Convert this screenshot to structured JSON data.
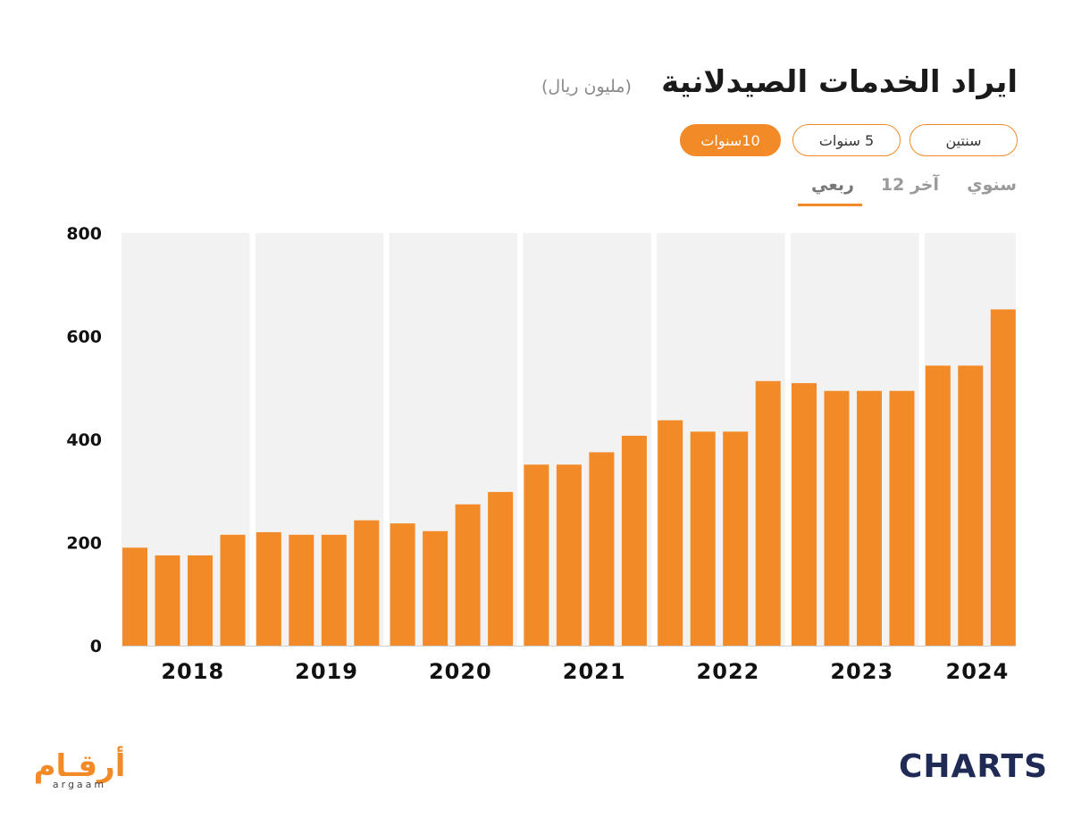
{
  "header": {
    "title": "ايراد الخدمات الصيدلانية",
    "unit": "(مليون ريال)"
  },
  "range_buttons": [
    {
      "label": "سنتين",
      "active": false
    },
    {
      "label": "5 سنوات",
      "active": false
    },
    {
      "label": "10سنوات",
      "active": true
    }
  ],
  "period_tabs": [
    {
      "label": "سنوي",
      "active": false
    },
    {
      "label": "آخر 12",
      "active": false
    },
    {
      "label": "ربعي",
      "active": true
    }
  ],
  "colors": {
    "bar": "#f28a27",
    "band": "#f2f2f2",
    "accent": "#f28a27"
  },
  "chart_data": {
    "type": "bar",
    "ylim": [
      0,
      800
    ],
    "yticks": [
      0,
      200,
      400,
      600,
      800
    ],
    "groups": [
      {
        "year": "2018",
        "values": [
          190,
          175,
          175,
          215
        ]
      },
      {
        "year": "2019",
        "values": [
          220,
          215,
          215,
          243
        ]
      },
      {
        "year": "2020",
        "values": [
          237,
          222,
          274,
          298
        ]
      },
      {
        "year": "2021",
        "values": [
          351,
          351,
          375,
          407
        ]
      },
      {
        "year": "2022",
        "values": [
          437,
          415,
          415,
          513
        ]
      },
      {
        "year": "2023",
        "values": [
          509,
          494,
          494,
          494
        ]
      },
      {
        "year": "2024",
        "values": [
          543,
          543,
          652
        ]
      }
    ]
  },
  "footer": {
    "left_logo_ar": "أرقـام",
    "left_logo_en": "argaam",
    "right_logo": "CHARTS"
  }
}
